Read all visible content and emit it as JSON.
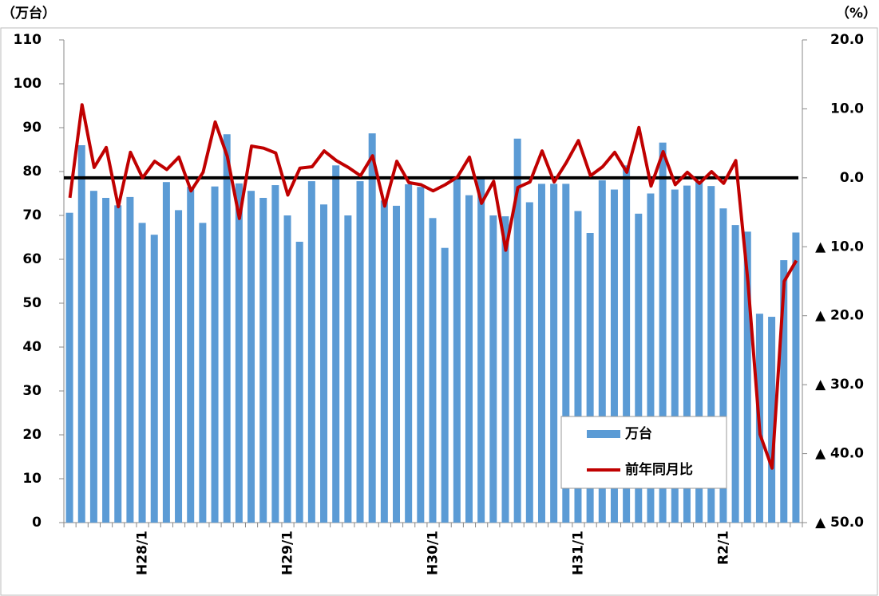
{
  "chart_data": {
    "type": "bar-line",
    "y_label": "（万台）",
    "y2_label": "（%）",
    "categories": [
      null,
      null,
      null,
      null,
      null,
      null,
      "H28/1",
      null,
      null,
      null,
      null,
      null,
      null,
      null,
      null,
      null,
      null,
      null,
      "H29/1",
      null,
      null,
      null,
      null,
      null,
      null,
      null,
      null,
      null,
      null,
      null,
      "H30/1",
      null,
      null,
      null,
      null,
      null,
      null,
      null,
      null,
      null,
      null,
      null,
      "H31/1",
      null,
      null,
      null,
      null,
      null,
      null,
      null,
      null,
      null,
      null,
      null,
      "R2/1",
      null,
      null,
      null,
      null,
      null,
      null
    ],
    "series": [
      {
        "name": "万台",
        "type": "bar",
        "color": "#5b9bd5",
        "values": [
          70.6,
          86,
          75.6,
          74,
          72.3,
          74.2,
          68.3,
          65.6,
          77.6,
          71.2,
          76.5,
          68.3,
          76.6,
          88.5,
          77.3,
          75.6,
          74,
          76.9,
          70,
          64,
          77.8,
          72.5,
          81.4,
          70,
          77.8,
          88.7,
          73.4,
          72.2,
          77.1,
          76.5,
          69.4,
          62.6,
          78.5,
          74.6,
          78.3,
          70,
          69.8,
          87.5,
          73,
          77.2,
          77.2,
          77.2,
          71,
          66,
          78,
          75.9,
          81.4,
          70.4,
          75,
          86.6,
          75.9,
          76.8,
          77.7,
          76.7,
          71.6,
          67.8,
          66.3,
          47.6,
          46.9,
          59.8,
          66.1
        ]
      },
      {
        "name": "前年同月比",
        "type": "line",
        "axis": "y2",
        "color": "#c00000",
        "values": [
          -2.9,
          10.6,
          1.5,
          4.4,
          -4.2,
          3.7,
          0,
          2.4,
          1.2,
          3,
          -1.9,
          0.8,
          8.1,
          3.1,
          -5.9,
          4.6,
          4.3,
          3.6,
          -2.5,
          1.4,
          1.6,
          3.9,
          2.5,
          1.5,
          0.3,
          3.2,
          -4.1,
          2.4,
          -0.7,
          -1,
          -1.9,
          -1,
          0.1,
          3,
          -3.7,
          -0.5,
          -10.5,
          -1.4,
          -0.6,
          3.9,
          -0.6,
          2.2,
          5.4,
          0.3,
          1.6,
          3.7,
          0.8,
          7.3,
          -1.2,
          3.8,
          -1,
          0.8,
          -0.8,
          0.9,
          -0.8,
          2.5,
          -15,
          -37.2,
          -42.1,
          -15,
          -12
        ]
      }
    ],
    "ylim": [
      0,
      110
    ],
    "yticks": [
      0,
      10,
      20,
      30,
      40,
      50,
      60,
      70,
      80,
      90,
      100,
      110
    ],
    "y2lim": [
      -50,
      20
    ],
    "y2ticks": [
      {
        "value": -50,
        "label": "▲ 50.0"
      },
      {
        "value": -40,
        "label": "▲ 40.0"
      },
      {
        "value": -30,
        "label": "▲ 30.0"
      },
      {
        "value": -20,
        "label": "▲ 20.0"
      },
      {
        "value": -10,
        "label": "▲ 10.0"
      },
      {
        "value": 0,
        "label": "0.0"
      },
      {
        "value": 10,
        "label": "10.0"
      },
      {
        "value": 20,
        "label": "20.0"
      }
    ],
    "zero_line_y2": true,
    "legend": "lower right"
  }
}
